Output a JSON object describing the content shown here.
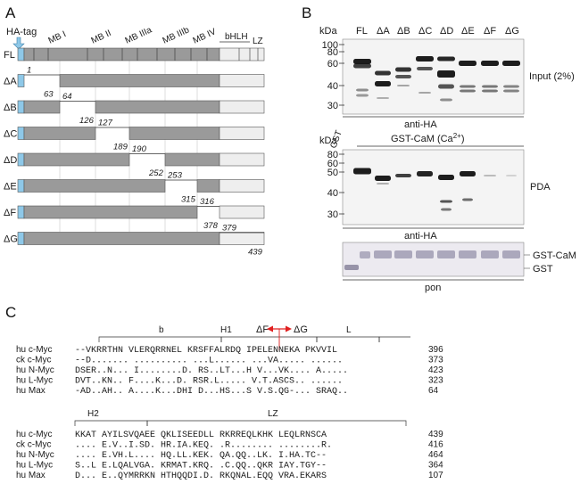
{
  "panel_a": {
    "letter": "A",
    "ha_tag": "HA-tag",
    "domains": [
      "MB I",
      "MB II",
      "MB IIIa",
      "MB IIIb",
      "MB IV",
      "bHLH",
      "LZ"
    ],
    "constructs": [
      {
        "name": "FL",
        "start": null,
        "end": null
      },
      {
        "name": "ΔA",
        "start": "1",
        "end": "63"
      },
      {
        "name": "ΔB",
        "start": "64",
        "end": "126"
      },
      {
        "name": "ΔC",
        "start": "127",
        "end": "189"
      },
      {
        "name": "ΔD",
        "start": "190",
        "end": "252"
      },
      {
        "name": "ΔE",
        "start": "253",
        "end": "315"
      },
      {
        "name": "ΔF",
        "start": "316",
        "end": "378"
      },
      {
        "name": "ΔG",
        "start": "379",
        "end": "439"
      }
    ],
    "colors": {
      "grey": "#9a9a9a",
      "light": "#eeeeee",
      "tag": "#8ec8e8"
    }
  },
  "panel_b": {
    "letter": "B",
    "kda": "kDa",
    "lanes_top": [
      "FL",
      "ΔA",
      "ΔB",
      "ΔC",
      "ΔD",
      "ΔE",
      "ΔF",
      "ΔG"
    ],
    "markers_top": [
      "100",
      "80",
      "60",
      "40",
      "30"
    ],
    "input_label": "Input (2%)",
    "anti_ha": "anti-HA",
    "gst": "GST",
    "gst_cam": "GST-CaM (Ca",
    "gst_cam_sup": "2+",
    "gst_cam_close": ")",
    "markers_mid": [
      "80",
      "60",
      "50",
      "40",
      "30"
    ],
    "pda": "PDA",
    "gst_cam_right": "GST-CaM",
    "gst_right": "GST",
    "pon": "pon"
  },
  "panel_c": {
    "letter": "C",
    "regions": [
      "b",
      "H1",
      "L",
      "H2",
      "LZ"
    ],
    "delta_f": "ΔF",
    "delta_g": "ΔG",
    "block1": [
      {
        "name": "hu c-Myc",
        "seq": "--VKRRTHN VLERQRRNEL KRSFFALRDQ IPELENNEKA PKVVIL",
        "num": "396"
      },
      {
        "name": "ck c-Myc",
        "seq": "--D....... .......... ...L...... ...VA..... ......",
        "num": "373"
      },
      {
        "name": "hu N-Myc",
        "seq": "DSER..N... I........D. RS..LT...H V...VK.... A.....",
        "num": "423"
      },
      {
        "name": "hu L-Myc",
        "seq": "DVT..KN.. F....K...D. RSR.L..... V.T.ASCS.. ......",
        "num": "323"
      },
      {
        "name": "hu Max",
        "seq": "-AD..AH.. A....K...DHI D...HS...S V.S.QG-... SRAQ..",
        "num": "64"
      }
    ],
    "block2": [
      {
        "name": "hu c-Myc",
        "seq": "KKAT AYILSVQAEE QKLISEEDLL RKRREQLKHK LEQLRNSCA",
        "num": "439"
      },
      {
        "name": "ck c-Myc",
        "seq": ".... E.V..I.SD. HR.IA.KEQ. .R........ ........R.",
        "num": "416"
      },
      {
        "name": "hu N-Myc",
        "seq": ".... E.VH.L.... HQ.LL.KEK. QA.QQ..LK. I.HA.TC--",
        "num": "464"
      },
      {
        "name": "hu L-Myc",
        "seq": "S..L E.LQALVGA. KRMAT.KRQ. .C.QQ..QKR IAY.TGY--",
        "num": "364"
      },
      {
        "name": "hu Max",
        "seq": "D... E..QYMRRKN HTHQQDI.D. RKQNAL.EQQ VRA.EKARS",
        "num": "107"
      }
    ]
  }
}
